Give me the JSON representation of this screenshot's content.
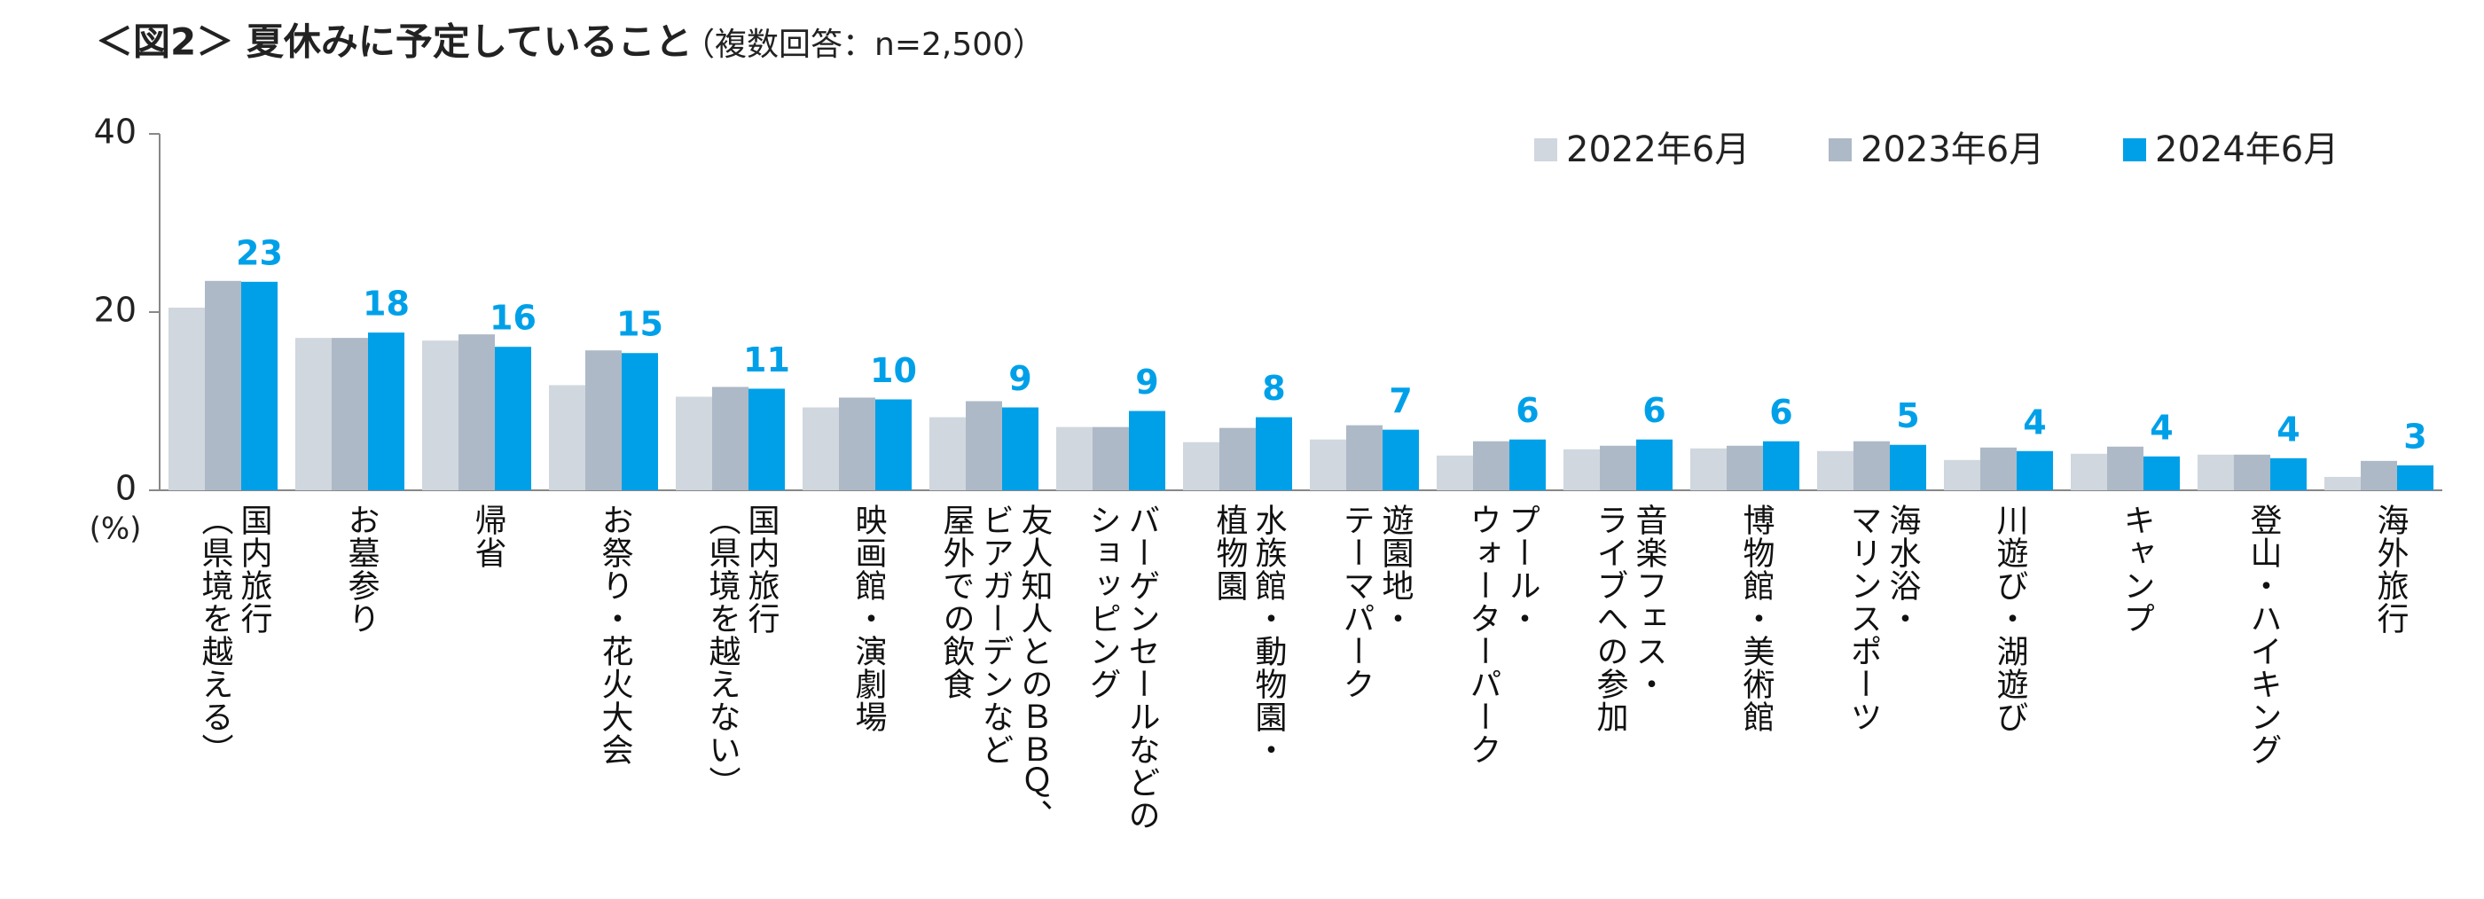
{
  "chart_data": {
    "type": "bar",
    "title": "＜図2＞ 夏休みに予定していること",
    "subtitle": "（複数回答：n=2,500）",
    "y_label": "(%)",
    "categories": [
      "国内旅行\n（県境を越える）",
      "お墓参り",
      "帰省",
      "お祭り・花火大会",
      "国内旅行\n（県境を越えない）",
      "映画館・演劇場",
      "友人知人とのＢＢＱ、\nビアガーデンなど\n屋外での飲食",
      "バーゲンセールなどの\nショッピング",
      "水族館・動物園・\n植物園",
      "遊園地・\nテーマパーク",
      "プール・\nウォーターパーク",
      "音楽フェス・\nライブへの参加",
      "博物館・美術館",
      "海水浴・\nマリンスポーツ",
      "川遊び・湖遊び",
      "キャンプ",
      "登山・ハイキング",
      "海外旅行"
    ],
    "series": [
      {
        "name": "2022年6月",
        "color": "#d0d7de",
        "values": [
          20.5,
          17.1,
          16.8,
          11.8,
          10.5,
          9.3,
          8.2,
          7.1,
          5.4,
          5.7,
          3.9,
          4.6,
          4.7,
          4.4,
          3.4,
          4.1,
          4.0,
          1.5
        ]
      },
      {
        "name": "2023年6月",
        "color": "#adb9c6",
        "values": [
          23.5,
          17.1,
          17.5,
          15.7,
          11.6,
          10.4,
          10.0,
          7.1,
          7.0,
          7.3,
          5.5,
          5.0,
          5.0,
          5.5,
          4.8,
          4.9,
          4.0,
          3.3
        ]
      },
      {
        "name": "2024年6月",
        "color": "#00a0e9",
        "values": [
          23.4,
          17.7,
          16.1,
          15.4,
          11.4,
          10.2,
          9.3,
          8.9,
          8.2,
          6.8,
          5.7,
          5.7,
          5.5,
          5.1,
          4.4,
          3.8,
          3.6,
          2.8
        ],
        "value_labels": [
          "23",
          "18",
          "16",
          "15",
          "11",
          "10",
          "9",
          "9",
          "8",
          "7",
          "6",
          "6",
          "6",
          "5",
          "4",
          "4",
          "4",
          "3"
        ]
      }
    ],
    "ylim": [
      0,
      40
    ],
    "yticks": [
      0,
      20,
      40
    ],
    "grid": false,
    "legend": "top-right"
  }
}
